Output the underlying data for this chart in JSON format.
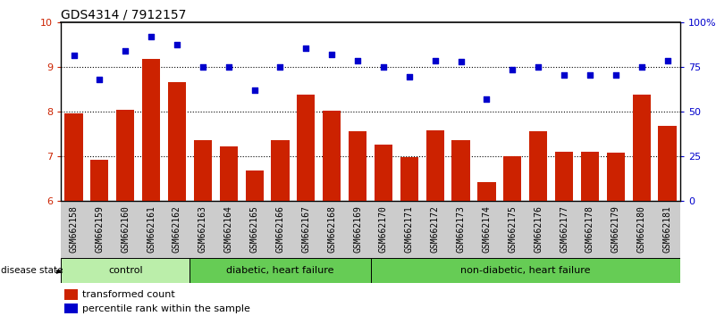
{
  "title": "GDS4314 / 7912157",
  "samples": [
    "GSM662158",
    "GSM662159",
    "GSM662160",
    "GSM662161",
    "GSM662162",
    "GSM662163",
    "GSM662164",
    "GSM662165",
    "GSM662166",
    "GSM662167",
    "GSM662168",
    "GSM662169",
    "GSM662170",
    "GSM662171",
    "GSM662172",
    "GSM662173",
    "GSM662174",
    "GSM662175",
    "GSM662176",
    "GSM662177",
    "GSM662178",
    "GSM662179",
    "GSM662180",
    "GSM662181"
  ],
  "bar_values": [
    7.95,
    6.92,
    8.03,
    9.18,
    8.65,
    7.35,
    7.22,
    6.67,
    7.35,
    8.37,
    8.02,
    7.55,
    7.25,
    6.97,
    7.57,
    7.35,
    6.42,
    7.0,
    7.55,
    7.1,
    7.1,
    7.07,
    8.37,
    7.68
  ],
  "dot_values": [
    9.25,
    8.72,
    9.35,
    9.68,
    9.5,
    9.0,
    9.0,
    8.47,
    9.0,
    9.42,
    9.27,
    9.13,
    9.0,
    8.78,
    9.13,
    9.12,
    8.27,
    8.93,
    9.0,
    8.82,
    8.82,
    8.82,
    9.0,
    9.13
  ],
  "bar_color": "#cc2200",
  "dot_color": "#0000cc",
  "ylim_left": [
    6,
    10
  ],
  "ylim_right": [
    0,
    100
  ],
  "yticks_left": [
    6,
    7,
    8,
    9,
    10
  ],
  "yticks_right": [
    0,
    25,
    50,
    75,
    100
  ],
  "ytick_labels_right": [
    "0",
    "25",
    "50",
    "75",
    "100%"
  ],
  "groups": [
    {
      "label": "control",
      "start": 0,
      "end": 5,
      "color": "#bbeeaa"
    },
    {
      "label": "diabetic, heart failure",
      "start": 5,
      "end": 12,
      "color": "#66cc55"
    },
    {
      "label": "non-diabetic, heart failure",
      "start": 12,
      "end": 24,
      "color": "#66cc55"
    }
  ],
  "legend_bar_label": "transformed count",
  "legend_dot_label": "percentile rank within the sample",
  "disease_state_label": "disease state",
  "bg_color": "#ffffff",
  "tick_bg_color": "#cccccc",
  "grid_color": "#000000",
  "title_fontsize": 10,
  "tick_fontsize": 7,
  "group_fontsize": 8
}
